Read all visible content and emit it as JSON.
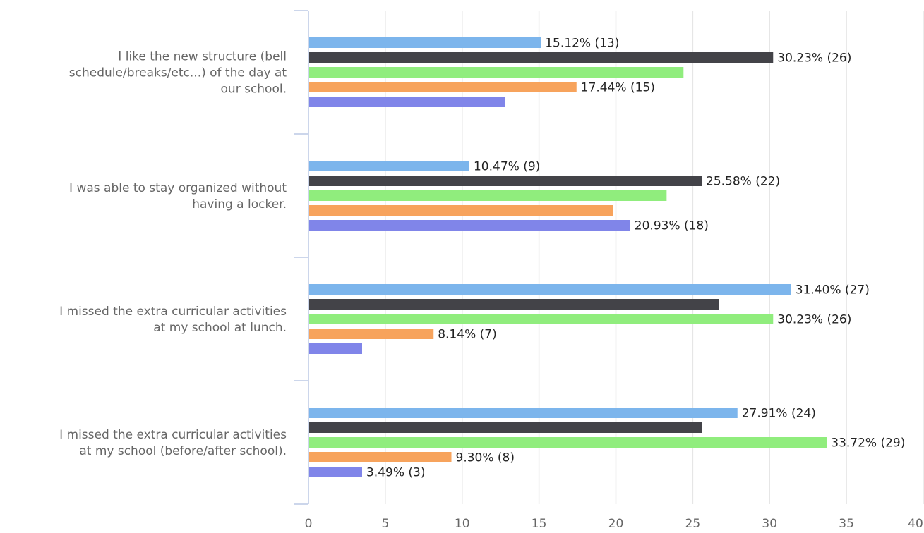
{
  "chart_data": {
    "type": "bar",
    "orientation": "horizontal",
    "categories": [
      "I like the new structure (bell schedule/breaks/etc...) of the day at our school.",
      "I was able to stay organized without having a locker.",
      "I missed the extra curricular activities at my school at lunch.",
      "I missed the extra curricular activities at my school (before/after school)."
    ],
    "category_lines": [
      [
        "I like the new structure (bell",
        "schedule/breaks/etc...) of the day at",
        "our school."
      ],
      [
        "I was able to stay organized without",
        "having a locker."
      ],
      [
        "I missed the extra curricular activities",
        "at my school at lunch."
      ],
      [
        "I missed the extra curricular activities",
        "at my school (before/after school)."
      ]
    ],
    "series": [
      {
        "color": "#7cb5ec",
        "values": [
          15.12,
          10.47,
          31.4,
          27.91
        ],
        "labels": [
          "15.12% (13)",
          "10.47% (9)",
          "31.40% (27)",
          "27.91% (24)"
        ]
      },
      {
        "color": "#434348",
        "values": [
          30.23,
          25.58,
          26.7,
          25.58
        ],
        "labels": [
          "30.23% (26)",
          "25.58% (22)",
          "",
          ""
        ]
      },
      {
        "color": "#90ed7d",
        "values": [
          24.4,
          23.3,
          30.23,
          33.72
        ],
        "labels": [
          "",
          "",
          "30.23% (26)",
          "33.72% (29)"
        ]
      },
      {
        "color": "#f7a35c",
        "values": [
          17.44,
          19.8,
          8.14,
          9.3
        ],
        "labels": [
          "17.44% (15)",
          "",
          "8.14% (7)",
          "9.30% (8)"
        ]
      },
      {
        "color": "#8085e9",
        "values": [
          12.8,
          20.93,
          3.49,
          3.49
        ],
        "labels": [
          "",
          "20.93% (18)",
          "",
          "3.49% (3)"
        ]
      }
    ],
    "x_ticks": [
      "0",
      "5",
      "10",
      "15",
      "20",
      "25",
      "30",
      "35",
      "40"
    ],
    "xlim": [
      0,
      40
    ],
    "grid": true,
    "legend": "none"
  }
}
